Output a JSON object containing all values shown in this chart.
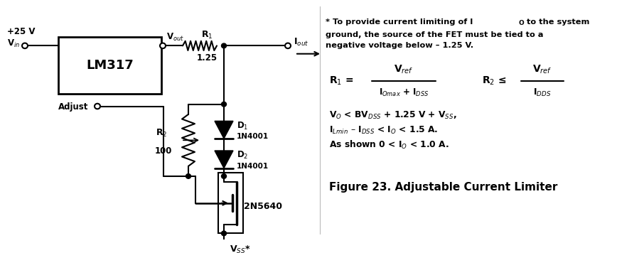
{
  "bg_color": "#ffffff",
  "fig_width": 9.06,
  "fig_height": 3.56,
  "dpi": 100,
  "note_text1": "* To provide current limiting of I",
  "note_text2": " to the system",
  "note_text3": "ground, the source of the FET must be tied to a",
  "note_text4": "negative voltage below – 1.25 V.",
  "figure_caption": "Figure 23. Adjustable Current Limiter"
}
